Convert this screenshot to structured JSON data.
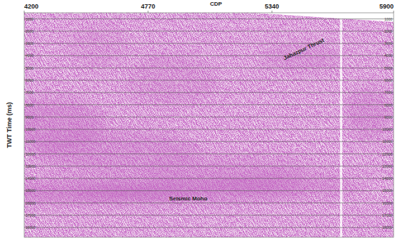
{
  "chart_data": {
    "type": "seismic",
    "x_label": "CDP",
    "y_label": "TWT Time (ms)",
    "xlim": [
      4200,
      5900
    ],
    "xticks": [
      4200,
      4770,
      5340,
      5900
    ],
    "ylim": [
      500,
      18800
    ],
    "yticks": [
      1000,
      2000,
      3000,
      4000,
      5000,
      6000,
      7000,
      8000,
      9000,
      10000,
      11000,
      12000,
      13000,
      14000,
      15000,
      16000,
      17000,
      18000
    ],
    "grid": true,
    "annotations": [
      {
        "text": "Jahazpur Thrust",
        "x": 5490,
        "y": 3600
      },
      {
        "text": "Seismic Moho",
        "x": 4955,
        "y": 15800
      }
    ]
  }
}
